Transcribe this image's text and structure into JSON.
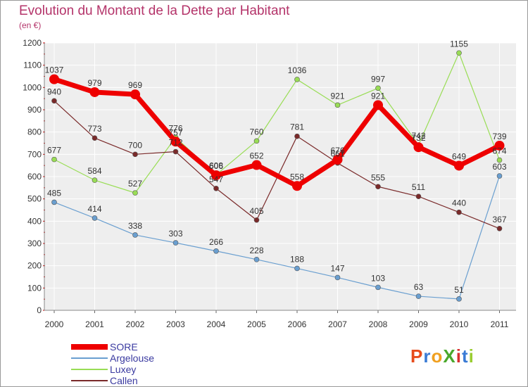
{
  "title": "Evolution du Montant de la Dette par Habitant",
  "subtitle": "(en €)",
  "logo": {
    "text": "ProXiti",
    "letters": [
      "P",
      "r",
      "o",
      "X",
      "i",
      "t",
      "i"
    ],
    "colors": [
      "#e74c1c",
      "#3a7bd5",
      "#f0a020",
      "#4aa82c",
      "#d83030",
      "#3a7bd5",
      "#9acd32"
    ]
  },
  "chart_data": {
    "type": "line",
    "title": "Evolution du Montant de la Dette par Habitant",
    "subtitle": "(en €)",
    "x": [
      "2000",
      "2001",
      "2002",
      "2003",
      "2004",
      "2005",
      "2006",
      "2007",
      "2008",
      "2009",
      "2010",
      "2011"
    ],
    "ylim": [
      0,
      1200
    ],
    "yticks": [
      0,
      100,
      200,
      300,
      400,
      500,
      600,
      700,
      800,
      900,
      1000,
      1100,
      1200
    ],
    "grid": true,
    "legend": "bottom-left",
    "series": [
      {
        "name": "SORE",
        "color": "#ee0000",
        "width": 7,
        "marker": 7,
        "values": [
          1037,
          979,
          969,
          757,
          606,
          652,
          558,
          676,
          921,
          732,
          649,
          739
        ]
      },
      {
        "name": "Argelouse",
        "color": "#6a9fd0",
        "width": 1.2,
        "marker": 3.5,
        "values": [
          485,
          414,
          338,
          303,
          266,
          228,
          188,
          147,
          103,
          63,
          51,
          603
        ]
      },
      {
        "name": "Luxey",
        "color": "#99dd55",
        "width": 1.2,
        "marker": 3.5,
        "values": [
          677,
          584,
          527,
          776,
          608,
          760,
          1036,
          921,
          997,
          742,
          1155,
          674
        ]
      },
      {
        "name": "Callen",
        "color": "#7a2a2a",
        "width": 1.2,
        "marker": 3.5,
        "values": [
          940,
          773,
          700,
          712,
          547,
          405,
          781,
          661,
          555,
          511,
          440,
          367
        ]
      }
    ]
  }
}
